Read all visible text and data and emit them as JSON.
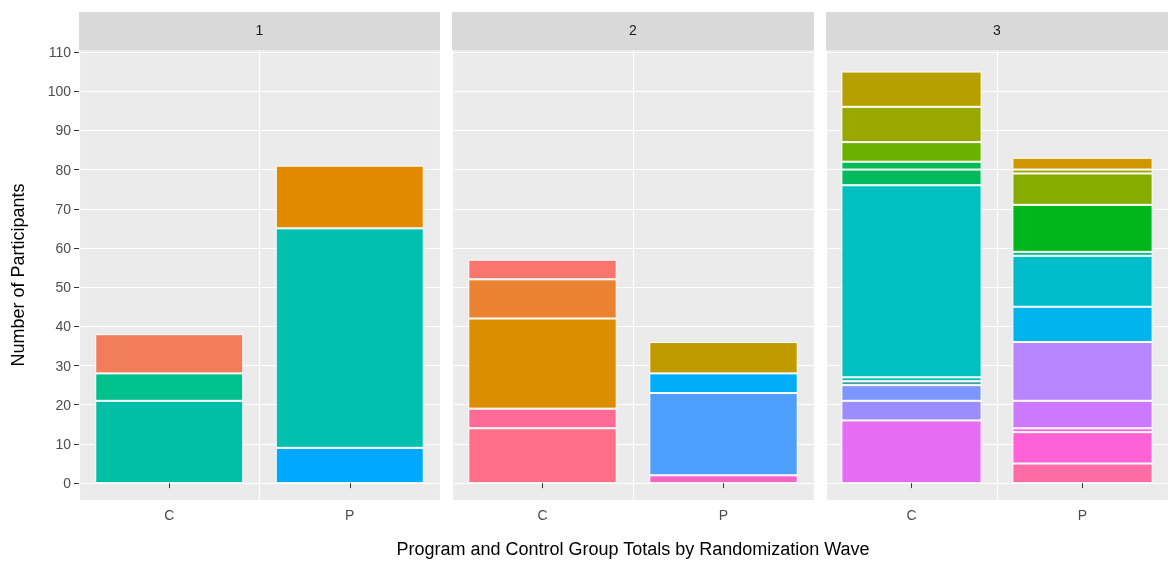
{
  "chart_data": [
    {
      "type": "bar",
      "stacked": true,
      "title": "1",
      "ylabel": "Number of Participants",
      "categories": [
        "C",
        "P"
      ],
      "ylim": [
        -4.3,
        110.5
      ],
      "yticks": [
        0,
        10,
        20,
        30,
        40,
        50,
        60,
        70,
        80,
        90,
        100,
        110
      ],
      "grid": true,
      "series": [
        {
          "color": "#00bfa6",
          "values": [
            21,
            null
          ]
        },
        {
          "color": "#00c08b",
          "values": [
            7,
            null
          ]
        },
        {
          "color": "#f17d5b",
          "values": [
            10,
            null
          ]
        },
        {
          "color": "#00a8ff",
          "values": [
            null,
            9
          ]
        },
        {
          "color": "#00c0af",
          "values": [
            null,
            56
          ]
        },
        {
          "color": "#e38900",
          "values": [
            null,
            16
          ]
        }
      ]
    },
    {
      "type": "bar",
      "stacked": true,
      "title": "2",
      "xlabel": "Program and Control Group Totals by Randomization Wave",
      "categories": [
        "C",
        "P"
      ],
      "ylim": [
        -4.3,
        110.5
      ],
      "yticks": [
        0,
        10,
        20,
        30,
        40,
        50,
        60,
        70,
        80,
        90,
        100,
        110
      ],
      "grid": true,
      "tick_labels": "x",
      "series": [
        {
          "color": "#ff6f87",
          "values": [
            14,
            null
          ]
        },
        {
          "color": "#ff6b96",
          "values": [
            5,
            null
          ]
        },
        {
          "color": "#db8e00",
          "values": [
            23,
            null
          ]
        },
        {
          "color": "#ea8331",
          "values": [
            10,
            null
          ]
        },
        {
          "color": "#f8766d",
          "values": [
            5,
            null
          ]
        },
        {
          "color": "#f863c8",
          "values": [
            null,
            2
          ]
        },
        {
          "color": "#4f9fff",
          "values": [
            null,
            21
          ]
        },
        {
          "color": "#00aef8",
          "values": [
            null,
            5
          ]
        },
        {
          "color": "#c09b00",
          "values": [
            null,
            8
          ]
        }
      ]
    },
    {
      "type": "bar",
      "stacked": true,
      "title": "3",
      "categories": [
        "C",
        "P"
      ],
      "ylim": [
        -4.3,
        110.5
      ],
      "yticks": [
        0,
        10,
        20,
        30,
        40,
        50,
        60,
        70,
        80,
        90,
        100,
        110
      ],
      "grid": true,
      "tick_labels": "x",
      "series": [
        {
          "color": "#e76bf3",
          "values": [
            16,
            null
          ]
        },
        {
          "color": "#9c8dff",
          "values": [
            5,
            null
          ]
        },
        {
          "color": "#7d96ff",
          "values": [
            4,
            null
          ]
        },
        {
          "color": "#4aa0a8",
          "values": [
            1,
            null
          ]
        },
        {
          "color": "#00c1b8",
          "values": [
            1,
            null
          ]
        },
        {
          "color": "#00c1bf",
          "values": [
            49,
            null
          ]
        },
        {
          "color": "#00ba5c",
          "values": [
            4,
            null
          ]
        },
        {
          "color": "#00bc56",
          "values": [
            2,
            null
          ]
        },
        {
          "color": "#6bb100",
          "values": [
            5,
            null
          ]
        },
        {
          "color": "#99a800",
          "values": [
            9,
            null
          ]
        },
        {
          "color": "#b79f00",
          "values": [
            9,
            null
          ]
        },
        {
          "color": "#ff6ba4",
          "values": [
            null,
            5
          ]
        },
        {
          "color": "#ff62d6",
          "values": [
            null,
            8
          ]
        },
        {
          "color": "#ff66e6",
          "values": [
            null,
            1
          ]
        },
        {
          "color": "#cd79ff",
          "values": [
            null,
            7
          ]
        },
        {
          "color": "#b785ff",
          "values": [
            null,
            15
          ]
        },
        {
          "color": "#00b5ee",
          "values": [
            null,
            9
          ]
        },
        {
          "color": "#00bdcc",
          "values": [
            null,
            13
          ]
        },
        {
          "color": "#00c08d",
          "values": [
            null,
            1
          ]
        },
        {
          "color": "#00b61a",
          "values": [
            null,
            12
          ]
        },
        {
          "color": "#86ac00",
          "values": [
            null,
            8
          ]
        },
        {
          "color": "#a4a500",
          "values": [
            null,
            1
          ]
        },
        {
          "color": "#d09600",
          "values": [
            null,
            3
          ]
        }
      ]
    }
  ]
}
